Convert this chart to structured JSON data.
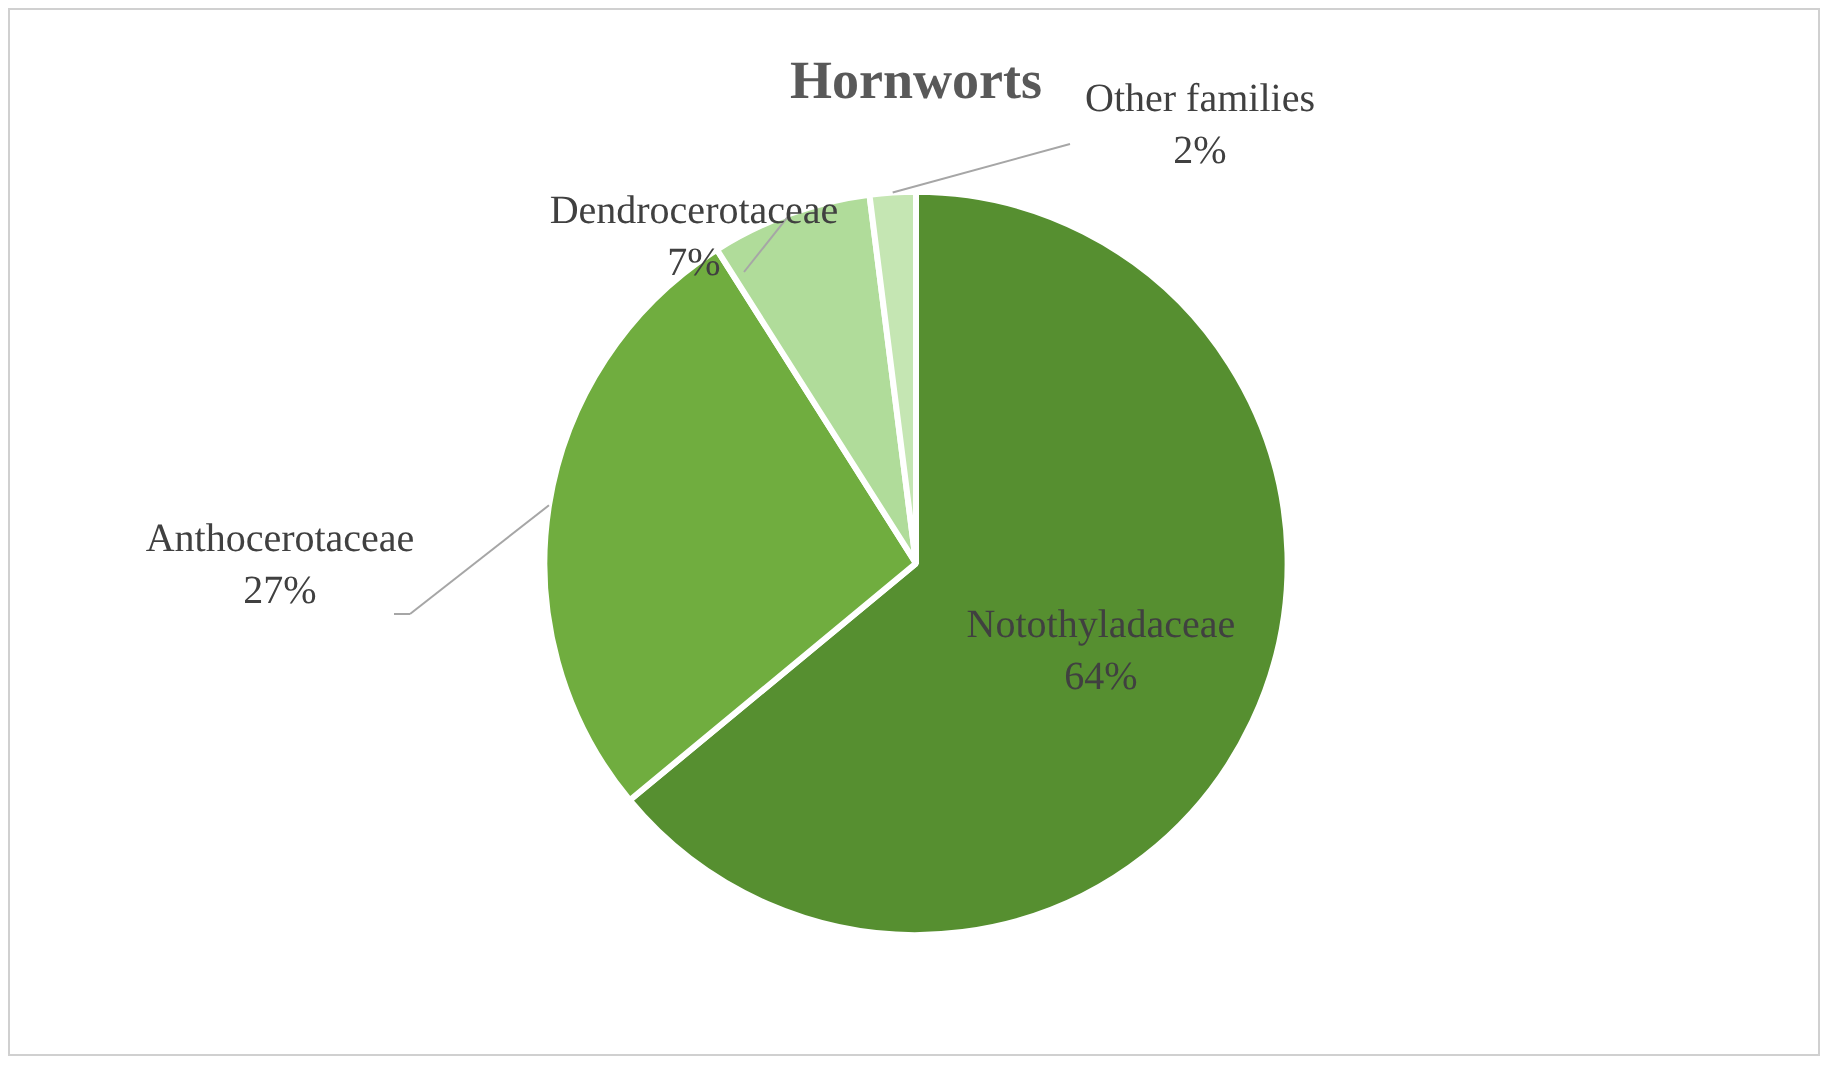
{
  "chart_data": {
    "type": "pie",
    "title": "Hornworts",
    "categories": [
      "Notothyladaceae",
      "Anthocerotaceae",
      "Dendrocerotaceae",
      "Other families"
    ],
    "values": [
      64,
      27,
      7,
      2
    ],
    "colors": [
      "#568f30",
      "#70ad3f",
      "#b0dc9a",
      "#c5e6b3"
    ],
    "value_labels": [
      "64%",
      "27%",
      "7%",
      "2%"
    ],
    "legend": false
  }
}
